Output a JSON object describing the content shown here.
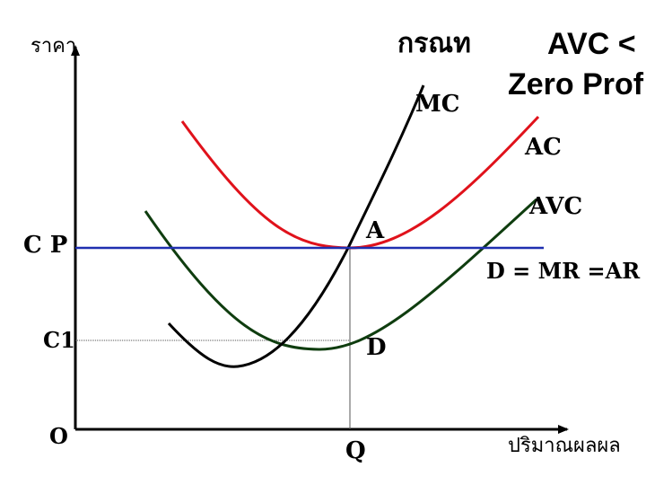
{
  "title": {
    "case_label": "กรณท",
    "line1": "AVC <",
    "line2": "Zero Prof"
  },
  "axes": {
    "y_label": "ราคา",
    "x_label": "ปริมาณผลผล",
    "origin": "O",
    "price_p": "C P",
    "price_c1": "C1",
    "quantity_q": "Q"
  },
  "curves": {
    "mc_label": "MC",
    "ac_label": "AC",
    "avc_label": "AVC",
    "demand_label": "D = MR =AR"
  },
  "points": {
    "a_label": "A",
    "d_label": "D"
  },
  "colors": {
    "ac": "#e0121b",
    "avc": "#0f3d0f",
    "mc": "#000000",
    "demand": "#1f2fb0",
    "axis": "#000000",
    "guide": "#555555"
  }
}
